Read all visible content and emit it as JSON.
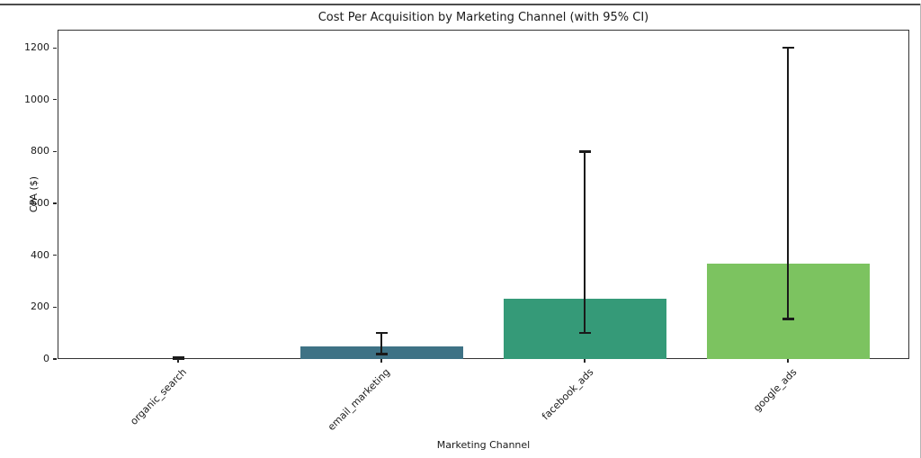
{
  "figure": {
    "title": "Cost Per Acquisition by Marketing Channel (with 95% CI)"
  },
  "chart_data": {
    "type": "bar",
    "title": "Cost Per Acquisition by Marketing Channel (with 95% CI)",
    "xlabel": "Marketing Channel",
    "ylabel": "CPA ($)",
    "categories": [
      "organic_search",
      "email_marketing",
      "facebook_ads",
      "google_ads"
    ],
    "values": [
      0,
      50,
      232,
      368
    ],
    "error_bars": {
      "ci_level": "95%",
      "lower": [
        0,
        20,
        100,
        155
      ],
      "upper": [
        6,
        100,
        800,
        1200
      ]
    },
    "bar_colors": [
      "#3b528b",
      "#3e7285",
      "#359a78",
      "#7cc360"
    ],
    "error_color": "#1a1a1a",
    "yticks": [
      0,
      200,
      400,
      600,
      800,
      1000,
      1200
    ],
    "ylim": [
      0,
      1270
    ],
    "grid": false,
    "legend": "none",
    "x_tick_rotation_deg": 45
  }
}
